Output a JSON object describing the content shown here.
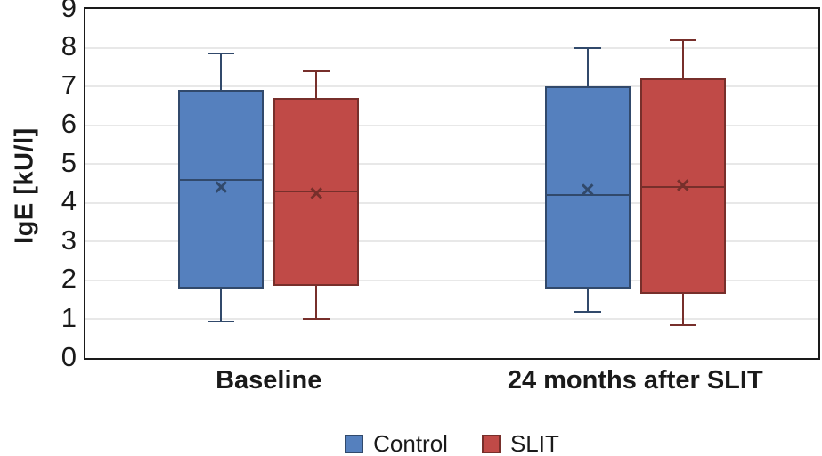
{
  "figure": {
    "background": "#ffffff",
    "text_color": "#1a1a1a"
  },
  "chart_data": {
    "type": "boxplot",
    "title": "",
    "ylabel": "IgE [kU/l]",
    "xlabel": "",
    "ylim": [
      0,
      9
    ],
    "yticks": [
      0,
      1,
      2,
      3,
      4,
      5,
      6,
      7,
      8,
      9
    ],
    "grid": true,
    "grid_color": "#e8e8e8",
    "frame_color": "#1a1a1a",
    "mean_marker_glyph": "×",
    "categories": [
      "Baseline",
      "24 months after SLIT"
    ],
    "series": [
      {
        "name": "Control",
        "fill": "#5580be",
        "stroke": "#31496b",
        "boxes": [
          {
            "category": "Baseline",
            "min": 0.95,
            "q1": 1.8,
            "median": 4.6,
            "mean": 4.4,
            "q3": 6.9,
            "max": 7.85
          },
          {
            "category": "24 months after SLIT",
            "min": 1.2,
            "q1": 1.8,
            "median": 4.2,
            "mean": 4.35,
            "q3": 7.0,
            "max": 8.0
          }
        ]
      },
      {
        "name": "SLIT",
        "fill": "#c04a47",
        "stroke": "#772f2b",
        "boxes": [
          {
            "category": "Baseline",
            "min": 1.0,
            "q1": 1.85,
            "median": 4.3,
            "mean": 4.25,
            "q3": 6.7,
            "max": 7.4
          },
          {
            "category": "24 months after SLIT",
            "min": 0.85,
            "q1": 1.65,
            "median": 4.4,
            "mean": 4.45,
            "q3": 7.2,
            "max": 8.2
          }
        ]
      }
    ],
    "legend": {
      "position": "bottom",
      "entries": [
        "Control",
        "SLIT"
      ]
    }
  }
}
